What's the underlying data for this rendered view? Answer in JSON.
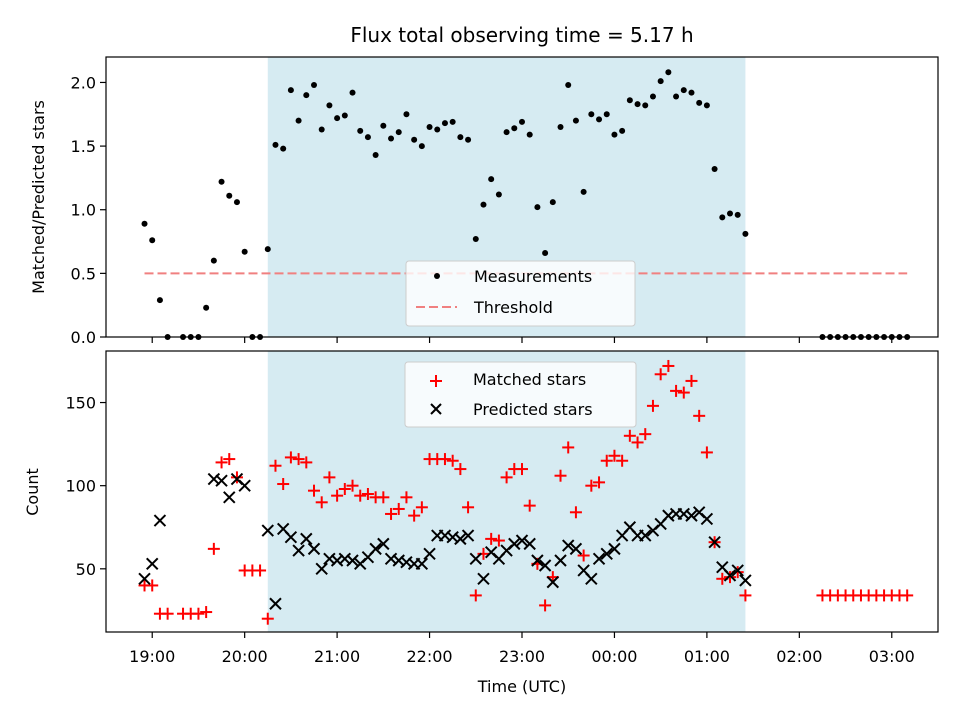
{
  "chart_data": [
    {
      "type": "scatter",
      "title": "Flux total observing time = 5.17 h",
      "xlabel": "",
      "ylabel": "Matched/Predicted stars",
      "xlim": [
        18.5,
        3.5
      ],
      "ylim": [
        0,
        2.2
      ],
      "yticks": [
        "0.0",
        "0.5",
        "1.0",
        "1.5",
        "2.0"
      ],
      "yticks_values": [
        0,
        0.5,
        1.0,
        1.5,
        2.0
      ],
      "shaded_region": {
        "from": "20:15",
        "to": "01:25",
        "color": "#add8e6"
      },
      "legend": {
        "position": "bottom-center",
        "entries": [
          "Measurements",
          "Threshold"
        ]
      },
      "threshold": {
        "name": "Threshold",
        "y": 0.5,
        "x_from": "18:55",
        "x_to": "03:10",
        "color": "#f08080"
      },
      "series": [
        {
          "name": "Measurements",
          "color": "#000000",
          "x": [
            "18:55",
            "19:00",
            "19:05",
            "19:10",
            "19:20",
            "19:25",
            "19:30",
            "19:35",
            "19:40",
            "19:45",
            "19:50",
            "19:55",
            "20:00",
            "20:05",
            "20:10",
            "20:15",
            "20:20",
            "20:25",
            "20:30",
            "20:35",
            "20:40",
            "20:45",
            "20:50",
            "20:55",
            "21:00",
            "21:05",
            "21:10",
            "21:15",
            "21:20",
            "21:25",
            "21:30",
            "21:35",
            "21:40",
            "21:45",
            "21:50",
            "21:55",
            "22:00",
            "22:05",
            "22:10",
            "22:15",
            "22:20",
            "22:25",
            "22:30",
            "22:35",
            "22:40",
            "22:45",
            "22:50",
            "22:55",
            "23:00",
            "23:05",
            "23:10",
            "23:15",
            "23:20",
            "23:25",
            "23:30",
            "23:35",
            "23:40",
            "23:45",
            "23:50",
            "23:55",
            "00:00",
            "00:05",
            "00:10",
            "00:15",
            "00:20",
            "00:25",
            "00:30",
            "00:35",
            "00:40",
            "00:45",
            "00:50",
            "00:55",
            "01:00",
            "01:05",
            "01:10",
            "01:15",
            "01:20",
            "01:25",
            "02:15",
            "02:20",
            "02:25",
            "02:30",
            "02:35",
            "02:40",
            "02:45",
            "02:50",
            "02:55",
            "03:00",
            "03:05",
            "03:10"
          ],
          "values": [
            0.89,
            0.76,
            0.29,
            0.0,
            0.0,
            0.0,
            0.0,
            0.23,
            0.6,
            1.22,
            1.11,
            1.06,
            0.67,
            0.0,
            0.0,
            0.69,
            1.51,
            1.48,
            1.94,
            1.7,
            1.9,
            1.98,
            1.63,
            1.82,
            1.72,
            1.74,
            1.92,
            1.62,
            1.57,
            1.43,
            1.66,
            1.56,
            1.61,
            1.75,
            1.55,
            1.5,
            1.65,
            1.63,
            1.68,
            1.69,
            1.57,
            1.55,
            0.77,
            1.04,
            1.24,
            1.12,
            1.61,
            1.64,
            1.69,
            1.59,
            1.02,
            0.66,
            1.06,
            1.65,
            1.98,
            1.7,
            1.14,
            1.75,
            1.71,
            1.75,
            1.59,
            1.62,
            1.86,
            1.83,
            1.82,
            1.89,
            2.01,
            2.08,
            1.89,
            1.94,
            1.92,
            1.84,
            1.82,
            1.32,
            0.94,
            0.97,
            0.96,
            0.81,
            0.0,
            0.0,
            0.0,
            0.0,
            0.0,
            0.0,
            0.0,
            0.0,
            0.0,
            0.0,
            0.0,
            0.0
          ]
        }
      ]
    },
    {
      "type": "scatter",
      "title": "",
      "xlabel": "Time (UTC)",
      "ylabel": "Count",
      "xlim": [
        18.5,
        3.5
      ],
      "ylim": [
        12,
        181
      ],
      "xticks": [
        "19:00",
        "20:00",
        "21:00",
        "22:00",
        "23:00",
        "00:00",
        "01:00",
        "02:00",
        "03:00"
      ],
      "yticks": [
        "50",
        "100",
        "150"
      ],
      "yticks_values": [
        50,
        100,
        150
      ],
      "shaded_region": {
        "from": "20:15",
        "to": "01:25",
        "color": "#add8e6"
      },
      "legend": {
        "position": "top-center",
        "entries": [
          "Matched stars",
          "Predicted stars"
        ]
      },
      "series": [
        {
          "name": "Matched stars",
          "color": "#ff0000",
          "marker": "plus",
          "x": [
            "18:55",
            "19:00",
            "19:05",
            "19:10",
            "19:20",
            "19:25",
            "19:30",
            "19:35",
            "19:40",
            "19:45",
            "19:50",
            "19:55",
            "20:00",
            "20:05",
            "20:10",
            "20:15",
            "20:20",
            "20:25",
            "20:30",
            "20:35",
            "20:40",
            "20:45",
            "20:50",
            "20:55",
            "21:00",
            "21:05",
            "21:10",
            "21:15",
            "21:20",
            "21:25",
            "21:30",
            "21:35",
            "21:40",
            "21:45",
            "21:50",
            "21:55",
            "22:00",
            "22:05",
            "22:10",
            "22:15",
            "22:20",
            "22:25",
            "22:30",
            "22:35",
            "22:40",
            "22:45",
            "22:50",
            "22:55",
            "23:00",
            "23:05",
            "23:10",
            "23:15",
            "23:20",
            "23:25",
            "23:30",
            "23:35",
            "23:40",
            "23:45",
            "23:50",
            "23:55",
            "00:00",
            "00:05",
            "00:10",
            "00:15",
            "00:20",
            "00:25",
            "00:30",
            "00:35",
            "00:40",
            "00:45",
            "00:50",
            "00:55",
            "01:00",
            "01:05",
            "01:10",
            "01:15",
            "01:20",
            "01:25",
            "02:15",
            "02:20",
            "02:25",
            "02:30",
            "02:35",
            "02:40",
            "02:45",
            "02:50",
            "02:55",
            "03:00",
            "03:05",
            "03:10"
          ],
          "values": [
            40,
            40,
            23,
            23,
            23,
            23,
            23,
            24,
            62,
            114,
            116,
            105,
            49,
            49,
            49,
            20,
            112,
            101,
            117,
            116,
            114,
            97,
            90,
            105,
            94,
            98,
            100,
            94,
            95,
            93,
            93,
            83,
            86,
            93,
            82,
            87,
            116,
            116,
            116,
            115,
            110,
            87,
            34,
            59,
            68,
            67,
            105,
            110,
            110,
            88,
            53,
            28,
            45,
            106,
            123,
            84,
            58,
            100,
            102,
            115,
            118,
            115,
            130,
            126,
            131,
            148,
            167,
            172,
            157,
            156,
            163,
            142,
            120,
            66,
            44,
            45,
            48,
            34,
            34,
            34,
            34,
            34,
            34,
            34,
            34,
            34,
            34,
            34,
            34,
            34
          ]
        },
        {
          "name": "Predicted stars",
          "color": "#000000",
          "marker": "cross",
          "x": [
            "18:55",
            "19:00",
            "19:05",
            "19:40",
            "19:45",
            "19:50",
            "19:55",
            "20:00",
            "20:15",
            "20:20",
            "20:25",
            "20:30",
            "20:35",
            "20:40",
            "20:45",
            "20:50",
            "20:55",
            "21:00",
            "21:05",
            "21:10",
            "21:15",
            "21:20",
            "21:25",
            "21:30",
            "21:35",
            "21:40",
            "21:45",
            "21:50",
            "21:55",
            "22:00",
            "22:05",
            "22:10",
            "22:15",
            "22:20",
            "22:25",
            "22:30",
            "22:35",
            "22:40",
            "22:45",
            "22:50",
            "22:55",
            "23:00",
            "23:05",
            "23:10",
            "23:15",
            "23:20",
            "23:25",
            "23:30",
            "23:35",
            "23:40",
            "23:45",
            "23:50",
            "23:55",
            "00:00",
            "00:05",
            "00:10",
            "00:15",
            "00:20",
            "00:25",
            "00:30",
            "00:35",
            "00:40",
            "00:45",
            "00:50",
            "00:55",
            "01:00",
            "01:05",
            "01:10",
            "01:15",
            "01:20",
            "01:25"
          ],
          "values": [
            44,
            53,
            79,
            104,
            103,
            93,
            104,
            100,
            73,
            29,
            74,
            69,
            61,
            68,
            62,
            50,
            56,
            55,
            56,
            55,
            53,
            57,
            62,
            65,
            56,
            55,
            54,
            53,
            53,
            59,
            70,
            70,
            69,
            68,
            70,
            56,
            44,
            60,
            56,
            61,
            65,
            67,
            65,
            55,
            52,
            42,
            55,
            64,
            62,
            49,
            44,
            56,
            59,
            62,
            70,
            75,
            70,
            70,
            73,
            77,
            82,
            83,
            83,
            82,
            84,
            80,
            66,
            51,
            46,
            49,
            43
          ]
        }
      ]
    }
  ]
}
